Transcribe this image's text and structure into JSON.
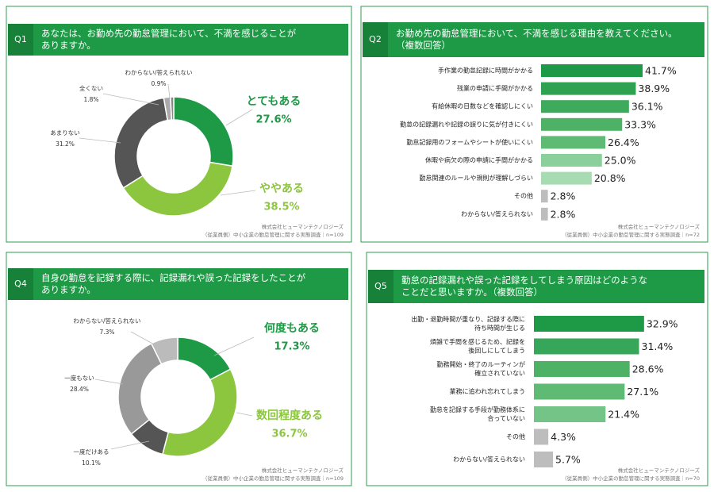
{
  "chart_data": [
    {
      "type": "donut",
      "label": "Q1",
      "title": [
        "あなたは、お勤め先の勤怠管理において、不満を感じることが",
        "ありますか。"
      ],
      "categories": [
        "とてもある",
        "ややある",
        "あまりない",
        "全くない",
        "わからない/答えられない"
      ],
      "values": [
        27.6,
        38.5,
        31.2,
        1.8,
        0.9
      ],
      "value_labels": [
        "27.6%",
        "38.5%",
        "31.2%",
        "1.8%",
        "0.9%"
      ],
      "colors": [
        "#1e9a47",
        "#8cc63f",
        "#555555",
        "#aaaaaa",
        "#888888"
      ],
      "source": [
        "株式会社ヒューマンテクノロジーズ",
        "（従業員側）中小企業の勤怠管理に関する実態調査｜n=109"
      ]
    },
    {
      "type": "bar",
      "label": "Q2",
      "title": [
        "お勤め先の勤怠管理において、不満を感じる理由を教えてください。",
        "（複数回答）"
      ],
      "categories": [
        [
          "手作業の勤怠記録に時間がかかる"
        ],
        [
          "残業の申請に手間がかかる"
        ],
        [
          "有給休暇の日数などを確認しにくい"
        ],
        [
          "勤怠の記録漏れや記録の誤りに気が付きにくい"
        ],
        [
          "勤怠記録用のフォームやシートが使いにくい"
        ],
        [
          "休暇や病欠の際の申請に手間がかかる"
        ],
        [
          "勤怠関連のルールや規則が理解しづらい"
        ],
        [
          "その他"
        ],
        [
          "わからない/答えられない"
        ]
      ],
      "values": [
        41.7,
        38.9,
        36.1,
        33.3,
        26.4,
        25.0,
        20.8,
        2.8,
        2.8
      ],
      "value_labels": [
        "41.7%",
        "38.9%",
        "36.1%",
        "33.3%",
        "26.4%",
        "25.0%",
        "20.8%",
        "2.8%",
        "2.8%"
      ],
      "colors": [
        "#1e9a47",
        "#2fa252",
        "#3daa5c",
        "#4db266",
        "#5fbb74",
        "#8bcf9b",
        "#a7dbb2",
        "#bdbdbd",
        "#bdbdbd"
      ],
      "source": [
        "株式会社ヒューマンテクノロジーズ",
        "（従業員側）中小企業の勤怠管理に関する実態調査｜n=72"
      ]
    },
    {
      "type": "donut",
      "label": "Q4",
      "title": [
        "自身の勤怠を記録する際に、記録漏れや誤った記録をしたことが",
        "ありますか。"
      ],
      "categories": [
        "何度もある",
        "数回程度ある",
        "一度だけある",
        "一度もない",
        "わからない/答えられない"
      ],
      "values": [
        17.3,
        36.7,
        10.1,
        28.4,
        7.3
      ],
      "value_labels": [
        "17.3%",
        "36.7%",
        "10.1%",
        "28.4%",
        "7.3%"
      ],
      "colors": [
        "#1e9a47",
        "#8cc63f",
        "#555555",
        "#999999",
        "#bbbbbb"
      ],
      "source": [
        "株式会社ヒューマンテクノロジーズ",
        "（従業員側）中小企業の勤怠管理に関する実態調査｜n=109"
      ]
    },
    {
      "type": "bar",
      "label": "Q5",
      "title": [
        "勤怠の記録漏れや誤った記録をしてしまう原因はどのような",
        "ことだと思いますか。（複数回答）"
      ],
      "categories": [
        [
          "出勤・退勤時間が重なり、記録する際に",
          "待ち時間が生じる"
        ],
        [
          "煩雑で手間を感じるため、記録を",
          "後回しにしてしまう"
        ],
        [
          "勤務開始・終了のルーティンが",
          "確立されていない"
        ],
        [
          "業務に追われ忘れてしまう"
        ],
        [
          "勤怠を記録する手段が勤務体系に",
          "合っていない"
        ],
        [
          "その他"
        ],
        [
          "わからない/答えられない"
        ]
      ],
      "values": [
        32.9,
        31.4,
        28.6,
        27.1,
        21.4,
        4.3,
        5.7
      ],
      "value_labels": [
        "32.9%",
        "31.4%",
        "28.6%",
        "27.1%",
        "21.4%",
        "4.3%",
        "5.7%"
      ],
      "colors": [
        "#1e9a47",
        "#36a658",
        "#4db266",
        "#5fbb74",
        "#74c487",
        "#bdbdbd",
        "#bdbdbd"
      ],
      "source": [
        "株式会社ヒューマンテクノロジーズ",
        "（従業員側）中小企業の勤怠管理に関する実態調査｜n=70"
      ]
    }
  ]
}
